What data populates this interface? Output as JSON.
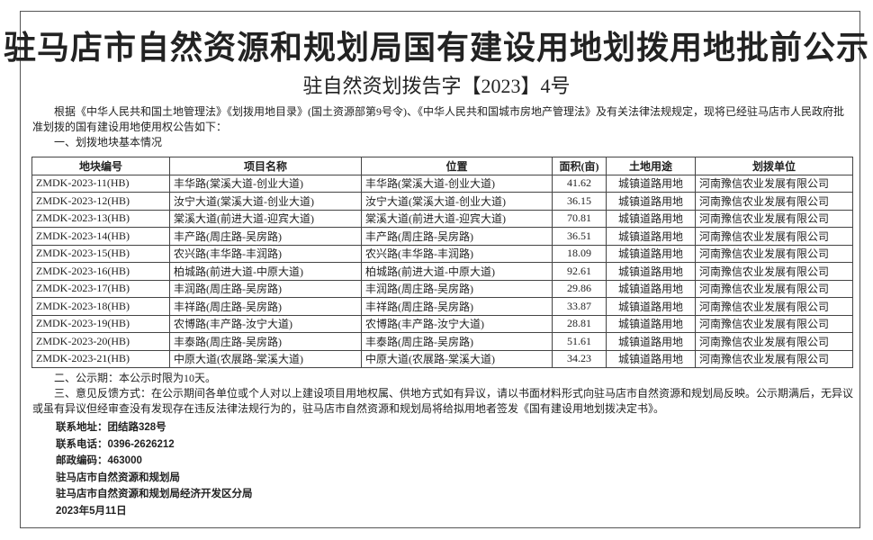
{
  "header": {
    "title": "驻马店市自然资源和规划局国有建设用地划拨用地批前公示",
    "doc_number": "驻自然资划拨告字【2023】4号"
  },
  "intro": "根据《中华人民共和国土地管理法》《划拨用地目录》(国土资源部第9号令)、《中华人民共和国城市房地产管理法》及有关法律法规规定，现将已经驻马店市人民政府批准划拨的国有建设用地使用权公告如下：",
  "section1": "一、划拨地块基本情况",
  "table": {
    "columns": [
      "地块编号",
      "项目名称",
      "位置",
      "面积(亩)",
      "土地用途",
      "划拨单位"
    ],
    "rows": [
      [
        "ZMDK-2023-11(HB)",
        "丰华路(棠溪大道-创业大道)",
        "丰华路(棠溪大道-创业大道)",
        "41.62",
        "城镇道路用地",
        "河南豫信农业发展有限公司"
      ],
      [
        "ZMDK-2023-12(HB)",
        "汝宁大道(棠溪大道-创业大道)",
        "汝宁大道(棠溪大道-创业大道)",
        "36.15",
        "城镇道路用地",
        "河南豫信农业发展有限公司"
      ],
      [
        "ZMDK-2023-13(HB)",
        "棠溪大道(前进大道-迎宾大道)",
        "棠溪大道(前进大道-迎宾大道)",
        "70.81",
        "城镇道路用地",
        "河南豫信农业发展有限公司"
      ],
      [
        "ZMDK-2023-14(HB)",
        "丰产路(周庄路-吴房路)",
        "丰产路(周庄路-吴房路)",
        "36.51",
        "城镇道路用地",
        "河南豫信农业发展有限公司"
      ],
      [
        "ZMDK-2023-15(HB)",
        "农兴路(丰华路-丰润路)",
        "农兴路(丰华路-丰润路)",
        "18.09",
        "城镇道路用地",
        "河南豫信农业发展有限公司"
      ],
      [
        "ZMDK-2023-16(HB)",
        "柏城路(前进大道-中原大道)",
        "柏城路(前进大道-中原大道)",
        "92.61",
        "城镇道路用地",
        "河南豫信农业发展有限公司"
      ],
      [
        "ZMDK-2023-17(HB)",
        "丰润路(周庄路-吴房路)",
        "丰润路(周庄路-吴房路)",
        "29.86",
        "城镇道路用地",
        "河南豫信农业发展有限公司"
      ],
      [
        "ZMDK-2023-18(HB)",
        "丰祥路(周庄路-吴房路)",
        "丰祥路(周庄路-吴房路)",
        "33.87",
        "城镇道路用地",
        "河南豫信农业发展有限公司"
      ],
      [
        "ZMDK-2023-19(HB)",
        "农博路(丰产路-汝宁大道)",
        "农博路(丰产路-汝宁大道)",
        "28.81",
        "城镇道路用地",
        "河南豫信农业发展有限公司"
      ],
      [
        "ZMDK-2023-20(HB)",
        "丰泰路(周庄路-吴房路)",
        "丰泰路(周庄路-吴房路)",
        "51.61",
        "城镇道路用地",
        "河南豫信农业发展有限公司"
      ],
      [
        "ZMDK-2023-21(HB)",
        "中原大道(农展路-棠溪大道)",
        "中原大道(农展路-棠溪大道)",
        "34.23",
        "城镇道路用地",
        "河南豫信农业发展有限公司"
      ]
    ]
  },
  "section2": "二、公示期：本公示时限为10天。",
  "section3": "三、意见反馈方式：在公示期间各单位或个人对以上建设项目用地权属、供地方式如有异议，请以书面材料形式向驻马店市自然资源和规划局反映。公示期满后，无异议或虽有异议但经审查没有发现存在违反法律法规行为的，驻马店市自然资源和规划局将给拟用地者签发《国有建设用地划拨决定书》。",
  "footer": [
    "联系地址：团结路328号",
    "联系电话：0396-2626212",
    "邮政编码：463000",
    "驻马店市自然资源和规划局",
    "驻马店市自然资源和规划局经济开发区分局",
    "2023年5月11日"
  ]
}
